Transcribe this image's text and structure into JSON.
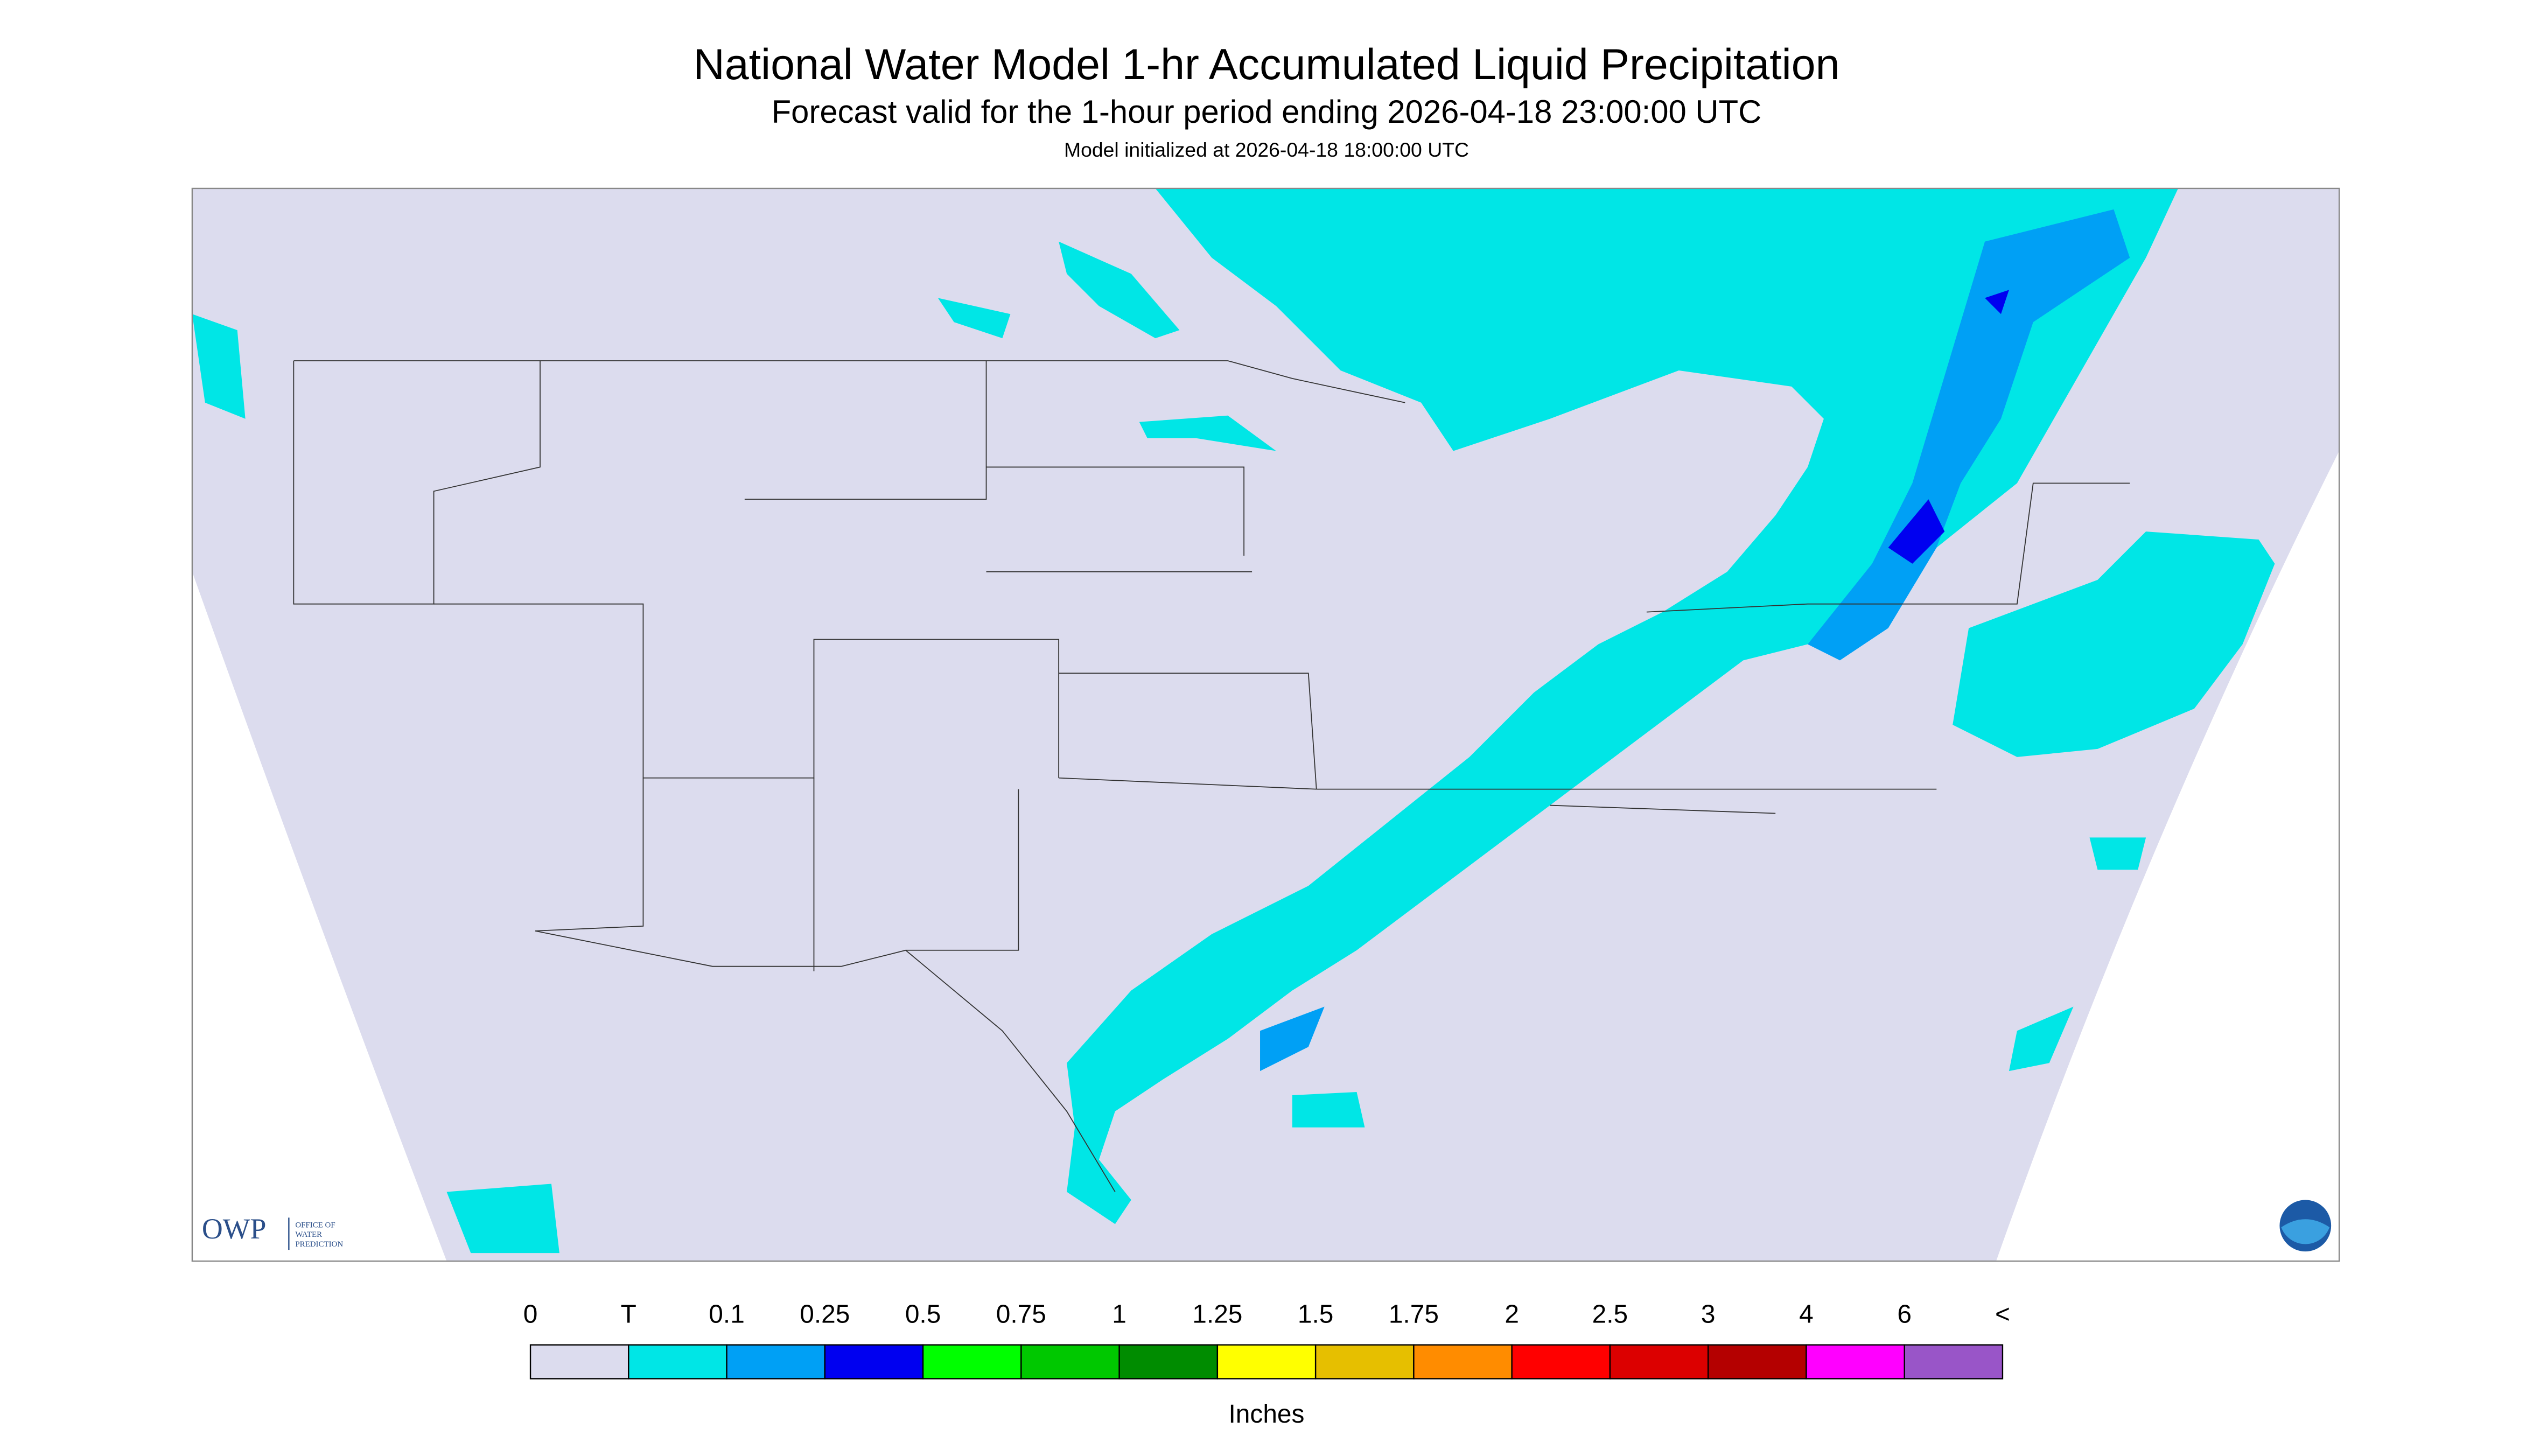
{
  "header": {
    "title": "National Water Model 1-hr Accumulated Liquid Precipitation",
    "subtitle": "Forecast valid for the 1-hour period ending 2026-04-18 23:00:00 UTC",
    "initialized": "Model initialized at 2026-04-18 18:00:00 UTC"
  },
  "legend": {
    "labels": [
      "0",
      "T",
      "0.1",
      "0.25",
      "0.5",
      "0.75",
      "1",
      "1.25",
      "1.5",
      "1.75",
      "2",
      "2.5",
      "3",
      "4",
      "6",
      "<"
    ],
    "colors": [
      "#dcdcee",
      "#00e6e6",
      "#00a0f5",
      "#0000f0",
      "#00ff00",
      "#00c800",
      "#008c00",
      "#ffff00",
      "#e6bf00",
      "#ff8c00",
      "#ff0000",
      "#dc0000",
      "#b40000",
      "#ff00ff",
      "#9955c8"
    ],
    "unit": "Inches"
  },
  "logo": {
    "mark": "OWP",
    "line1": "OFFICE OF",
    "line2": "WATER",
    "line3": "PREDICTION"
  }
}
